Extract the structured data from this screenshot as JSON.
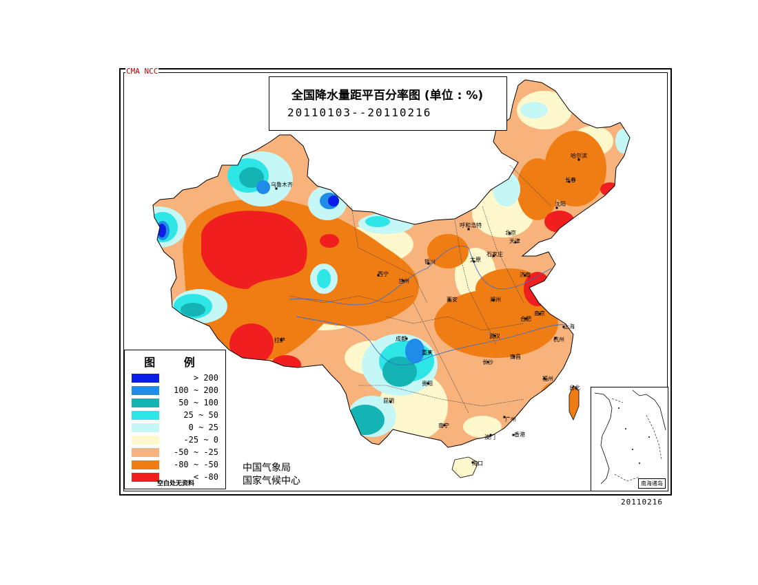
{
  "header": {
    "org_tag": "CMA NCC",
    "title": "全国降水量距平百分率图 (单位 : %)",
    "period": "20110103--20110216"
  },
  "legend": {
    "title": "图 例",
    "items": [
      {
        "label": "> 200",
        "color": "#0a1ee6"
      },
      {
        "label": "100 ~ 200",
        "color": "#1e8ce8"
      },
      {
        "label": "50 ~ 100",
        "color": "#14b4b4"
      },
      {
        "label": "25 ~ 50",
        "color": "#2ee6e6"
      },
      {
        "label": "0 ~ 25",
        "color": "#c6f7f7"
      },
      {
        "label": "-25 ~ 0",
        "color": "#fff8cc"
      },
      {
        "label": "-50 ~ -25",
        "color": "#f8b27c"
      },
      {
        "label": "-80 ~ -50",
        "color": "#f07c14"
      },
      {
        "label": "< -80",
        "color": "#f01e1e"
      }
    ],
    "note": "空白处无资料"
  },
  "agency": {
    "line1": "中国气象局",
    "line2": "国家气候中心"
  },
  "inset": {
    "label": "南海诸岛"
  },
  "date_stamp": "20110216",
  "cities": [
    {
      "name": "乌鲁木齐",
      "dot": [
        401,
        274
      ],
      "lbl": [
        393,
        271
      ]
    },
    {
      "name": "哈尔滨",
      "dot": [
        840,
        232
      ],
      "lbl": [
        828,
        229
      ]
    },
    {
      "name": "长春",
      "dot": [
        826,
        264
      ],
      "lbl": [
        820,
        264
      ]
    },
    {
      "name": "沈阳",
      "dot": [
        808,
        302
      ],
      "lbl": [
        805,
        299
      ]
    },
    {
      "name": "呼和浩特",
      "dot": [
        680,
        333
      ],
      "lbl": [
        667,
        330
      ]
    },
    {
      "name": "北京",
      "dot": [
        740,
        339
      ],
      "lbl": [
        733,
        341
      ]
    },
    {
      "name": "天津",
      "dot": [
        748,
        352
      ],
      "lbl": [
        739,
        353
      ]
    },
    {
      "name": "银川",
      "dot": [
        622,
        383
      ],
      "lbl": [
        616,
        383
      ]
    },
    {
      "name": "太原",
      "dot": [
        688,
        380
      ],
      "lbl": [
        682,
        380
      ]
    },
    {
      "name": "石家庄",
      "dot": [
        716,
        372
      ],
      "lbl": [
        706,
        372
      ]
    },
    {
      "name": "济南",
      "dot": [
        762,
        400
      ],
      "lbl": [
        754,
        402
      ]
    },
    {
      "name": "西宁",
      "dot": [
        549,
        400
      ],
      "lbl": [
        548,
        401
      ]
    },
    {
      "name": "兰州",
      "dot": [
        585,
        408
      ],
      "lbl": [
        578,
        411
      ]
    },
    {
      "name": "西安",
      "dot": [
        652,
        436
      ],
      "lbl": [
        648,
        438
      ]
    },
    {
      "name": "郑州",
      "dot": [
        716,
        436
      ],
      "lbl": [
        711,
        438
      ]
    },
    {
      "name": "合肥",
      "dot": [
        763,
        463
      ],
      "lbl": [
        755,
        466
      ]
    },
    {
      "name": "南京",
      "dot": [
        783,
        456
      ],
      "lbl": [
        775,
        458
      ]
    },
    {
      "name": "上海",
      "dot": [
        818,
        475
      ],
      "lbl": [
        818,
        477
      ]
    },
    {
      "name": "杭州",
      "dot": [
        806,
        491
      ],
      "lbl": [
        803,
        496
      ]
    },
    {
      "name": "武汉",
      "dot": [
        718,
        488
      ],
      "lbl": [
        710,
        491
      ]
    },
    {
      "name": "成都",
      "dot": [
        590,
        492
      ],
      "lbl": [
        574,
        495
      ]
    },
    {
      "name": "重庆",
      "dot": [
        624,
        512
      ],
      "lbl": [
        612,
        515
      ]
    },
    {
      "name": "长沙",
      "dot": [
        708,
        526
      ],
      "lbl": [
        700,
        529
      ]
    },
    {
      "name": "南昌",
      "dot": [
        746,
        518
      ],
      "lbl": [
        740,
        521
      ]
    },
    {
      "name": "福州",
      "dot": [
        790,
        550
      ],
      "lbl": [
        787,
        553
      ]
    },
    {
      "name": "贵阳",
      "dot": [
        621,
        557
      ],
      "lbl": [
        612,
        560
      ]
    },
    {
      "name": "拉萨",
      "dot": [
        408,
        494
      ],
      "lbl": [
        398,
        497
      ]
    },
    {
      "name": "昆明",
      "dot": [
        567,
        584
      ],
      "lbl": [
        556,
        585
      ]
    },
    {
      "name": "台北",
      "dot": [
        836,
        564
      ],
      "lbl": [
        826,
        566
      ]
    },
    {
      "name": "南宁",
      "dot": [
        645,
        618
      ],
      "lbl": [
        636,
        621
      ]
    },
    {
      "name": "广州",
      "dot": [
        732,
        606
      ],
      "lbl": [
        733,
        612
      ]
    },
    {
      "name": "澳门",
      "dot": [
        712,
        632
      ],
      "lbl": [
        703,
        638
      ]
    },
    {
      "name": "香港",
      "dot": [
        745,
        632
      ],
      "lbl": [
        746,
        634
      ]
    },
    {
      "name": "海口",
      "dot": [
        686,
        672
      ],
      "lbl": [
        685,
        676
      ]
    }
  ]
}
